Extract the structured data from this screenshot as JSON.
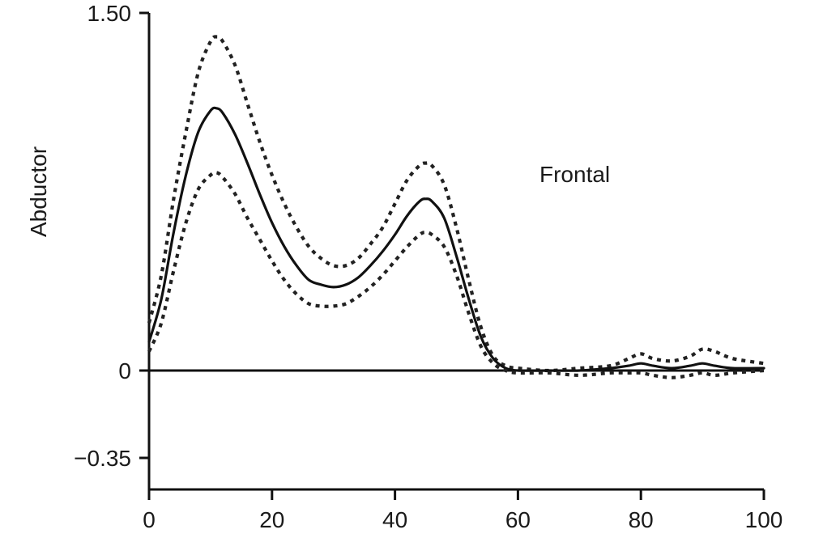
{
  "chart_data": {
    "type": "line",
    "ylabel": "Abductor",
    "xlabel": "",
    "annotation": "Frontal",
    "xlim": [
      0,
      100
    ],
    "ylim": [
      -0.35,
      1.5
    ],
    "x_ticks": [
      0,
      20,
      40,
      60,
      80,
      100
    ],
    "x_tick_labels": [
      "0",
      "20",
      "40",
      "60",
      "80",
      "100"
    ],
    "y_ticks": [
      1.5,
      0,
      -0.35
    ],
    "y_tick_labels": [
      "1.50",
      "0",
      "−0.35"
    ],
    "grid": false,
    "legend": "none",
    "series": [
      {
        "style": "dotted",
        "color": "#222222",
        "x": [
          0,
          2,
          4,
          6,
          8,
          10,
          11,
          12,
          14,
          16,
          18,
          20,
          22,
          24,
          26,
          28,
          30,
          32,
          34,
          36,
          38,
          40,
          42,
          44,
          45,
          46,
          48,
          50,
          52,
          54,
          56,
          58,
          60,
          65,
          70,
          75,
          78,
          80,
          82,
          85,
          88,
          90,
          92,
          95,
          100
        ],
        "values": [
          0.2,
          0.4,
          0.72,
          1.0,
          1.25,
          1.38,
          1.4,
          1.38,
          1.28,
          1.12,
          0.96,
          0.82,
          0.7,
          0.6,
          0.52,
          0.47,
          0.44,
          0.44,
          0.47,
          0.53,
          0.6,
          0.7,
          0.8,
          0.86,
          0.87,
          0.86,
          0.78,
          0.6,
          0.38,
          0.18,
          0.06,
          0.02,
          0.01,
          0.0,
          0.01,
          0.02,
          0.05,
          0.07,
          0.05,
          0.04,
          0.06,
          0.09,
          0.08,
          0.05,
          0.03
        ]
      },
      {
        "style": "solid",
        "color": "#111111",
        "x": [
          0,
          2,
          4,
          6,
          8,
          10,
          11,
          12,
          14,
          16,
          18,
          20,
          22,
          24,
          26,
          28,
          30,
          32,
          34,
          36,
          38,
          40,
          42,
          44,
          45,
          46,
          48,
          50,
          52,
          54,
          56,
          58,
          60,
          65,
          70,
          75,
          78,
          80,
          82,
          85,
          88,
          90,
          92,
          95,
          100
        ],
        "values": [
          0.12,
          0.3,
          0.58,
          0.82,
          1.0,
          1.09,
          1.1,
          1.08,
          0.99,
          0.87,
          0.74,
          0.62,
          0.52,
          0.44,
          0.38,
          0.36,
          0.35,
          0.36,
          0.39,
          0.44,
          0.5,
          0.57,
          0.65,
          0.71,
          0.72,
          0.71,
          0.64,
          0.48,
          0.3,
          0.14,
          0.05,
          0.01,
          0.0,
          0.0,
          0.0,
          0.01,
          0.02,
          0.03,
          0.02,
          0.01,
          0.02,
          0.03,
          0.02,
          0.01,
          0.01
        ]
      },
      {
        "style": "dotted",
        "color": "#222222",
        "x": [
          0,
          2,
          4,
          6,
          8,
          10,
          11,
          12,
          14,
          16,
          18,
          20,
          22,
          24,
          26,
          28,
          30,
          32,
          34,
          36,
          38,
          40,
          42,
          44,
          45,
          46,
          48,
          50,
          52,
          54,
          56,
          58,
          60,
          65,
          70,
          75,
          78,
          80,
          82,
          85,
          88,
          90,
          92,
          95,
          100
        ],
        "values": [
          0.08,
          0.2,
          0.42,
          0.62,
          0.76,
          0.82,
          0.83,
          0.81,
          0.74,
          0.64,
          0.55,
          0.46,
          0.38,
          0.32,
          0.28,
          0.27,
          0.27,
          0.28,
          0.31,
          0.35,
          0.4,
          0.46,
          0.52,
          0.57,
          0.58,
          0.57,
          0.52,
          0.4,
          0.24,
          0.1,
          0.03,
          0.0,
          -0.01,
          -0.01,
          -0.02,
          -0.01,
          -0.01,
          -0.01,
          -0.02,
          -0.03,
          -0.02,
          -0.01,
          -0.02,
          -0.01,
          0.0
        ]
      }
    ]
  }
}
